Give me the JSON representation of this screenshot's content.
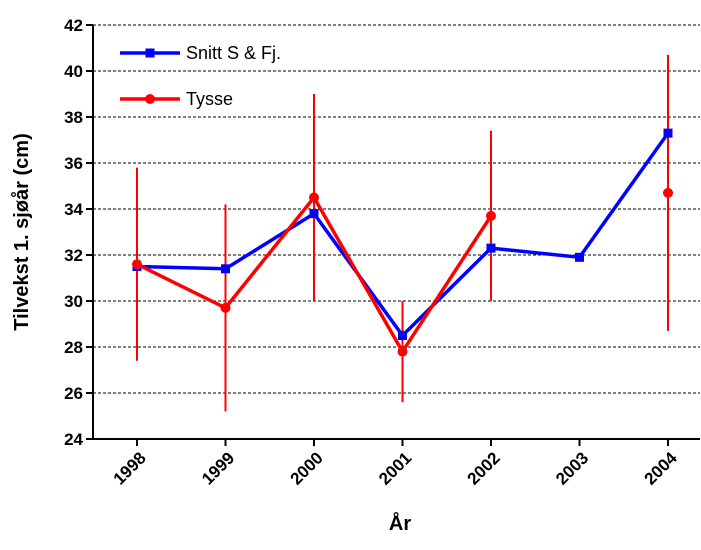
{
  "chart_data": {
    "type": "line",
    "x_label": "År",
    "y_label": "Tilvekst 1. sjøår (cm)",
    "categories": [
      "1998",
      "1999",
      "2000",
      "2001",
      "2002",
      "2003",
      "2004"
    ],
    "series": [
      {
        "name": "Snitt S & Fj.",
        "color": "#0000ff",
        "marker": "square",
        "values": [
          31.5,
          31.4,
          33.8,
          28.5,
          32.3,
          31.9,
          37.3
        ]
      },
      {
        "name": "Tysse",
        "color": "#ff0000",
        "marker": "circle",
        "values": [
          31.6,
          29.7,
          34.5,
          27.8,
          33.7,
          null,
          34.7
        ],
        "errors": [
          4.2,
          4.5,
          4.5,
          2.2,
          3.7,
          null,
          6.0
        ]
      }
    ],
    "ylim": [
      24,
      42
    ],
    "yticks": [
      24,
      26,
      28,
      30,
      32,
      34,
      36,
      38,
      40,
      42
    ],
    "grid": true,
    "legend": "top-left"
  }
}
